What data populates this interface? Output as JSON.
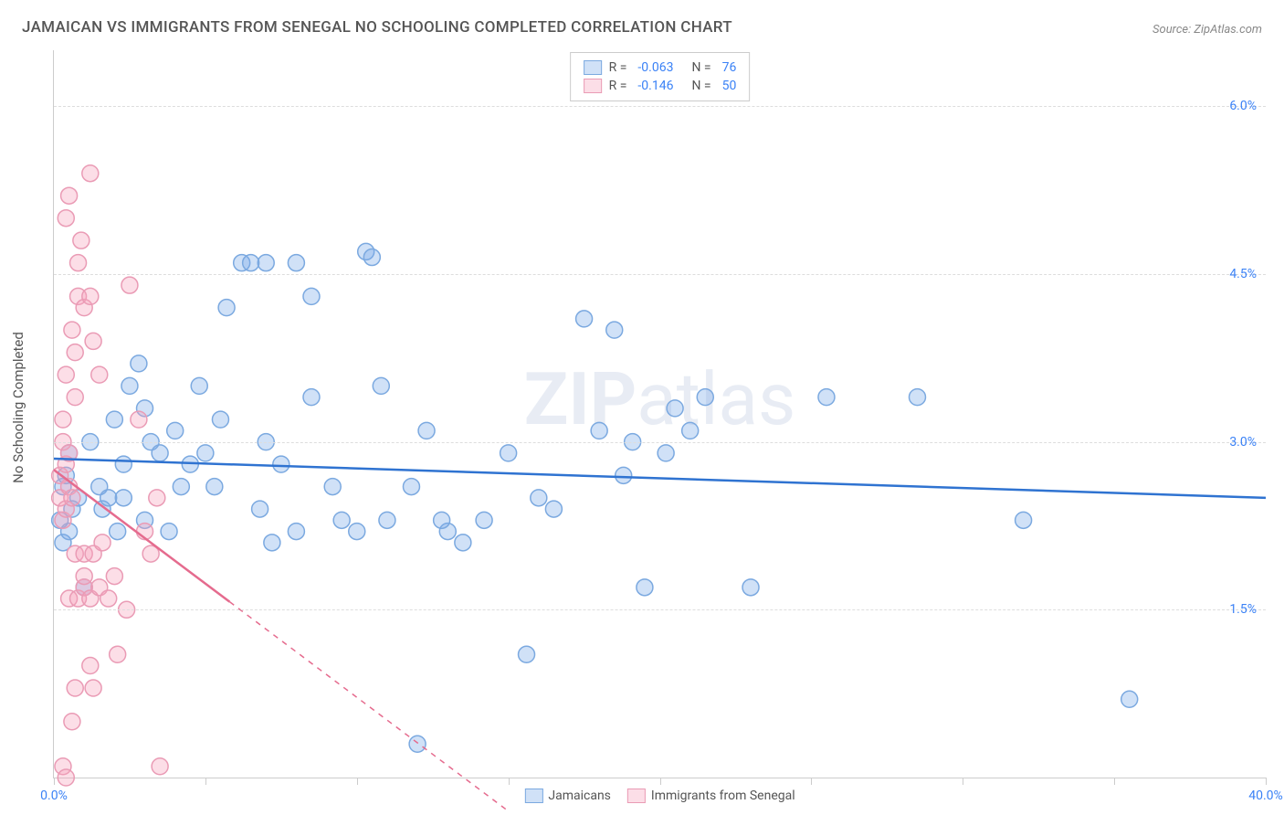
{
  "title": "JAMAICAN VS IMMIGRANTS FROM SENEGAL NO SCHOOLING COMPLETED CORRELATION CHART",
  "source": "Source: ZipAtlas.com",
  "y_axis_title": "No Schooling Completed",
  "watermark_bold": "ZIP",
  "watermark_light": "atlas",
  "chart": {
    "type": "scatter",
    "xlim": [
      0,
      40
    ],
    "ylim": [
      0,
      6.5
    ],
    "y_gridlines": [
      1.5,
      3.0,
      4.5,
      6.0
    ],
    "y_tick_labels": [
      "1.5%",
      "3.0%",
      "4.5%",
      "6.0%"
    ],
    "x_ticks": [
      0,
      5,
      10,
      15,
      20,
      25,
      30,
      35,
      40
    ],
    "x_start_label": "0.0%",
    "x_end_label": "40.0%",
    "background_color": "#ffffff",
    "grid_color": "#dddddd",
    "marker_radius": 9,
    "marker_stroke_width": 1.5,
    "line_width": 2.5
  },
  "series": [
    {
      "name": "Jamaicans",
      "color_fill": "rgba(120,170,232,0.35)",
      "color_stroke": "#7ba9e0",
      "line_color": "#2f73d1",
      "R": "-0.063",
      "N": "76",
      "trend": {
        "x1": 0,
        "y1": 2.85,
        "x2": 40,
        "y2": 2.5,
        "solid_until": 40
      },
      "points": [
        [
          0.2,
          2.3
        ],
        [
          0.3,
          2.6
        ],
        [
          0.3,
          2.1
        ],
        [
          0.5,
          2.2
        ],
        [
          0.6,
          2.4
        ],
        [
          0.4,
          2.7
        ],
        [
          0.8,
          2.5
        ],
        [
          0.5,
          2.9
        ],
        [
          1.0,
          1.7
        ],
        [
          1.2,
          3.0
        ],
        [
          1.5,
          2.6
        ],
        [
          1.6,
          2.4
        ],
        [
          1.8,
          2.5
        ],
        [
          2.0,
          3.2
        ],
        [
          2.1,
          2.2
        ],
        [
          2.3,
          2.8
        ],
        [
          2.5,
          3.5
        ],
        [
          2.3,
          2.5
        ],
        [
          3.0,
          2.3
        ],
        [
          3.2,
          3.0
        ],
        [
          3.0,
          3.3
        ],
        [
          3.5,
          2.9
        ],
        [
          3.8,
          2.2
        ],
        [
          4.0,
          3.1
        ],
        [
          4.2,
          2.6
        ],
        [
          4.5,
          2.8
        ],
        [
          4.8,
          3.5
        ],
        [
          5.0,
          2.9
        ],
        [
          5.3,
          2.6
        ],
        [
          5.5,
          3.2
        ],
        [
          5.7,
          4.2
        ],
        [
          6.2,
          4.6
        ],
        [
          6.8,
          2.4
        ],
        [
          7.0,
          3.0
        ],
        [
          7.2,
          2.1
        ],
        [
          7.5,
          2.8
        ],
        [
          7.0,
          4.6
        ],
        [
          8.0,
          2.2
        ],
        [
          8.5,
          3.4
        ],
        [
          8.5,
          4.3
        ],
        [
          9.2,
          2.6
        ],
        [
          9.5,
          2.3
        ],
        [
          10.0,
          2.2
        ],
        [
          10.3,
          4.7
        ],
        [
          10.5,
          4.65
        ],
        [
          10.8,
          3.5
        ],
        [
          11.0,
          2.3
        ],
        [
          11.8,
          2.6
        ],
        [
          12.0,
          0.3
        ],
        [
          12.3,
          3.1
        ],
        [
          13.0,
          2.2
        ],
        [
          13.5,
          2.1
        ],
        [
          14.2,
          2.3
        ],
        [
          15.0,
          2.9
        ],
        [
          15.6,
          1.1
        ],
        [
          16.0,
          2.5
        ],
        [
          16.5,
          2.4
        ],
        [
          17.5,
          4.1
        ],
        [
          18.0,
          3.1
        ],
        [
          18.5,
          4.0
        ],
        [
          18.8,
          2.7
        ],
        [
          19.1,
          3.0
        ],
        [
          19.5,
          1.7
        ],
        [
          20.2,
          2.9
        ],
        [
          20.5,
          3.3
        ],
        [
          21.0,
          3.1
        ],
        [
          21.5,
          3.4
        ],
        [
          23.0,
          1.7
        ],
        [
          25.5,
          3.4
        ],
        [
          28.5,
          3.4
        ],
        [
          32.0,
          2.3
        ],
        [
          35.5,
          0.7
        ],
        [
          8.0,
          4.6
        ],
        [
          6.5,
          4.6
        ],
        [
          12.8,
          2.3
        ],
        [
          2.8,
          3.7
        ]
      ]
    },
    {
      "name": "Immigrants from Senegal",
      "color_fill": "rgba(245,160,185,0.35)",
      "color_stroke": "#ea9bb5",
      "line_color": "#e56b8e",
      "R": "-0.146",
      "N": "50",
      "trend": {
        "x1": 0,
        "y1": 2.75,
        "x2": 15,
        "y2": -0.3,
        "solid_until": 5.8
      },
      "points": [
        [
          0.2,
          2.7
        ],
        [
          0.2,
          2.5
        ],
        [
          0.3,
          3.0
        ],
        [
          0.3,
          2.3
        ],
        [
          0.4,
          2.4
        ],
        [
          0.4,
          2.8
        ],
        [
          0.3,
          3.2
        ],
        [
          0.5,
          2.9
        ],
        [
          0.5,
          2.6
        ],
        [
          0.6,
          2.5
        ],
        [
          0.4,
          3.6
        ],
        [
          0.7,
          3.4
        ],
        [
          0.6,
          4.0
        ],
        [
          0.8,
          4.3
        ],
        [
          0.7,
          3.8
        ],
        [
          0.8,
          4.6
        ],
        [
          0.4,
          5.0
        ],
        [
          0.5,
          5.2
        ],
        [
          1.2,
          5.4
        ],
        [
          0.9,
          4.8
        ],
        [
          1.0,
          4.2
        ],
        [
          1.2,
          4.3
        ],
        [
          1.3,
          3.9
        ],
        [
          1.5,
          3.6
        ],
        [
          0.3,
          0.1
        ],
        [
          0.4,
          0.0
        ],
        [
          0.6,
          0.5
        ],
        [
          0.7,
          0.8
        ],
        [
          1.3,
          0.8
        ],
        [
          1.2,
          1.0
        ],
        [
          0.5,
          1.6
        ],
        [
          0.8,
          1.6
        ],
        [
          1.0,
          1.7
        ],
        [
          1.2,
          1.6
        ],
        [
          1.5,
          1.7
        ],
        [
          1.0,
          1.8
        ],
        [
          1.8,
          1.6
        ],
        [
          0.7,
          2.0
        ],
        [
          1.0,
          2.0
        ],
        [
          1.3,
          2.0
        ],
        [
          1.6,
          2.1
        ],
        [
          2.0,
          1.8
        ],
        [
          2.1,
          1.1
        ],
        [
          2.4,
          1.5
        ],
        [
          2.5,
          4.4
        ],
        [
          2.8,
          3.2
        ],
        [
          3.0,
          2.2
        ],
        [
          3.2,
          2.0
        ],
        [
          3.4,
          2.5
        ],
        [
          3.5,
          0.1
        ]
      ]
    }
  ],
  "legend_labels": {
    "R": "R =",
    "N": "N ="
  }
}
